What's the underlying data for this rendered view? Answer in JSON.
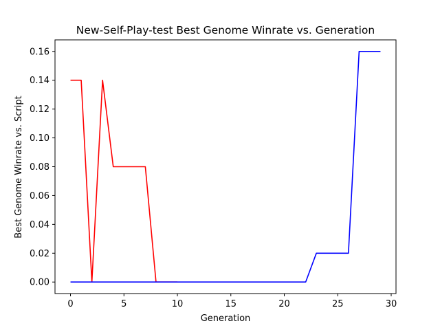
{
  "chart_data": {
    "type": "line",
    "title": "New-Self-Play-test Best Genome Winrate vs. Generation",
    "xlabel": "Generation",
    "ylabel": "Best Genome Winrate vs. Script",
    "xlim": [
      -1.45,
      30.45
    ],
    "ylim": [
      -0.008,
      0.168
    ],
    "xticks": [
      0,
      5,
      10,
      15,
      20,
      25,
      30
    ],
    "yticks": [
      0.0,
      0.02,
      0.04,
      0.06,
      0.08,
      0.1,
      0.12,
      0.14,
      0.16
    ],
    "xtick_labels": [
      "0",
      "5",
      "10",
      "15",
      "20",
      "25",
      "30"
    ],
    "ytick_labels": [
      "0.00",
      "0.02",
      "0.04",
      "0.06",
      "0.08",
      "0.10",
      "0.12",
      "0.14",
      "0.16"
    ],
    "grid": false,
    "legend": "none",
    "series": [
      {
        "color": "#ff0000",
        "x": [
          0,
          1,
          2,
          3,
          4,
          5,
          6,
          7,
          8,
          9,
          10
        ],
        "y": [
          0.14,
          0.14,
          0.0,
          0.14,
          0.08,
          0.08,
          0.08,
          0.08,
          0.0,
          0.0,
          0.0
        ]
      },
      {
        "color": "#0000ff",
        "x": [
          0,
          1,
          2,
          3,
          4,
          5,
          6,
          7,
          8,
          9,
          10,
          11,
          12,
          13,
          14,
          15,
          16,
          17,
          18,
          19,
          20,
          21,
          22,
          23,
          24,
          25,
          26,
          27,
          28,
          29
        ],
        "y": [
          0,
          0,
          0,
          0,
          0,
          0,
          0,
          0,
          0,
          0,
          0,
          0,
          0,
          0,
          0,
          0,
          0,
          0,
          0,
          0,
          0,
          0,
          0,
          0.02,
          0.02,
          0.02,
          0.02,
          0.16,
          0.16,
          0.16
        ]
      }
    ]
  }
}
